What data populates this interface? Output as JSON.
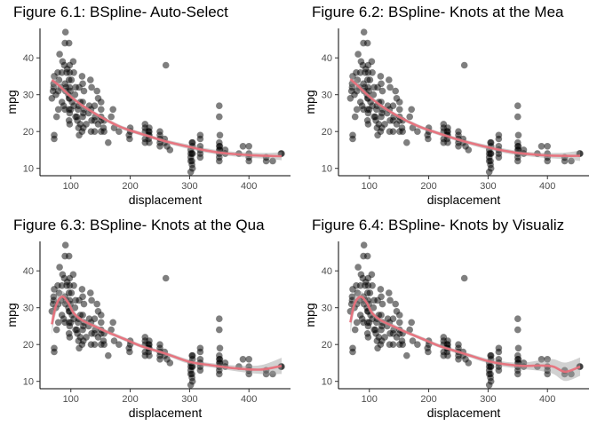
{
  "chart_data": [
    {
      "type": "scatter",
      "title": "Figure 6.1: BSpline- Auto-Select",
      "xlabel": "displacement",
      "ylabel": "mpg",
      "xlim": [
        48,
        470
      ],
      "ylim": [
        8,
        48
      ],
      "xticks": [
        100,
        200,
        300,
        400
      ],
      "yticks": [
        10,
        20,
        30,
        40
      ],
      "grid": false,
      "fit": {
        "x": [
          68,
          80,
          100,
          120,
          150,
          180,
          200,
          230,
          260,
          300,
          330,
          360,
          400,
          430,
          455
        ],
        "y": [
          34,
          32.5,
          29.5,
          27,
          24,
          21.5,
          20.3,
          18.8,
          17.3,
          15.8,
          14.8,
          14.1,
          13.6,
          13.4,
          13.3
        ],
        "band": [
          1.6,
          1.1,
          0.6,
          0.5,
          0.5,
          0.5,
          0.5,
          0.5,
          0.5,
          0.6,
          0.6,
          0.6,
          0.7,
          0.8,
          1.1
        ]
      }
    },
    {
      "type": "scatter",
      "title": "Figure 6.2: BSpline- Knots at the Mea",
      "xlabel": "displacement",
      "ylabel": "mpg",
      "xlim": [
        48,
        470
      ],
      "ylim": [
        8,
        48
      ],
      "xticks": [
        100,
        200,
        300,
        400
      ],
      "yticks": [
        10,
        20,
        30,
        40
      ],
      "grid": false,
      "fit": {
        "x": [
          68,
          80,
          100,
          120,
          150,
          180,
          200,
          230,
          260,
          300,
          330,
          360,
          400,
          430,
          455
        ],
        "y": [
          34.2,
          32.5,
          29.5,
          27,
          24,
          21.6,
          20.4,
          18.8,
          17.3,
          15.7,
          14.7,
          14,
          13.5,
          13.4,
          13.4
        ],
        "band": [
          1.8,
          1.2,
          0.6,
          0.5,
          0.5,
          0.5,
          0.5,
          0.5,
          0.5,
          0.6,
          0.6,
          0.6,
          0.7,
          0.9,
          1.4
        ]
      }
    },
    {
      "type": "scatter",
      "title": "Figure 6.3: BSpline- Knots at the Qua",
      "xlabel": "displacement",
      "ylabel": "mpg",
      "xlim": [
        48,
        470
      ],
      "ylim": [
        8,
        48
      ],
      "xticks": [
        100,
        200,
        300,
        400
      ],
      "yticks": [
        10,
        20,
        30,
        40
      ],
      "grid": false,
      "fit": {
        "x": [
          68,
          75,
          85,
          95,
          105,
          120,
          140,
          160,
          190,
          220,
          260,
          300,
          340,
          380,
          420,
          455
        ],
        "y": [
          25.5,
          30.5,
          33,
          31.5,
          28.5,
          26.5,
          25,
          23.5,
          21.5,
          19.5,
          17.5,
          15.3,
          14.3,
          13.5,
          13.2,
          14.2
        ],
        "band": [
          3.0,
          2.0,
          1.5,
          1.2,
          0.8,
          0.6,
          0.6,
          0.5,
          0.5,
          0.5,
          0.5,
          0.6,
          0.6,
          0.8,
          1.2,
          2.2
        ]
      }
    },
    {
      "type": "scatter",
      "title": "Figure 6.4: BSpline- Knots by Visualiz",
      "xlabel": "displacement",
      "ylabel": "mpg",
      "xlim": [
        48,
        470
      ],
      "ylim": [
        8,
        48
      ],
      "xticks": [
        100,
        200,
        300,
        400
      ],
      "yticks": [
        10,
        20,
        30,
        40
      ],
      "grid": false,
      "fit": {
        "x": [
          68,
          75,
          85,
          95,
          105,
          120,
          140,
          160,
          190,
          220,
          260,
          300,
          330,
          360,
          390,
          410,
          430,
          455
        ],
        "y": [
          26,
          31,
          33,
          31.5,
          28.5,
          26.5,
          25,
          23.5,
          21.5,
          19.5,
          17.5,
          15.5,
          14.6,
          14.2,
          14.3,
          14.0,
          12.6,
          14.0
        ],
        "band": [
          3.0,
          2.0,
          1.5,
          1.2,
          0.8,
          0.6,
          0.6,
          0.5,
          0.5,
          0.5,
          0.5,
          0.6,
          0.7,
          0.9,
          1.5,
          2.0,
          2.5,
          2.5
        ]
      }
    }
  ],
  "scatter_points": [
    [
      68,
      29
    ],
    [
      70,
      31
    ],
    [
      71,
      32
    ],
    [
      71,
      33
    ],
    [
      72,
      35
    ],
    [
      72,
      19
    ],
    [
      72,
      18
    ],
    [
      75,
      30
    ],
    [
      76,
      24
    ],
    [
      78,
      36
    ],
    [
      79,
      26
    ],
    [
      79,
      31
    ],
    [
      80,
      34
    ],
    [
      81,
      41
    ],
    [
      83,
      32
    ],
    [
      85,
      36
    ],
    [
      85,
      28
    ],
    [
      86,
      39
    ],
    [
      88,
      27
    ],
    [
      89,
      38
    ],
    [
      90,
      33
    ],
    [
      90,
      44
    ],
    [
      90,
      26
    ],
    [
      91,
      31
    ],
    [
      91,
      47
    ],
    [
      92,
      32
    ],
    [
      93,
      36
    ],
    [
      94,
      37
    ],
    [
      96,
      30
    ],
    [
      97,
      26
    ],
    [
      97,
      29
    ],
    [
      97,
      34
    ],
    [
      97,
      44
    ],
    [
      97,
      23
    ],
    [
      98,
      36
    ],
    [
      98,
      32
    ],
    [
      98,
      29
    ],
    [
      98,
      22
    ],
    [
      98,
      38
    ],
    [
      98,
      25
    ],
    [
      99,
      31
    ],
    [
      100,
      26
    ],
    [
      101,
      34
    ],
    [
      102,
      28
    ],
    [
      104,
      39
    ],
    [
      105,
      27
    ],
    [
      105,
      36
    ],
    [
      107,
      30
    ],
    [
      108,
      24
    ],
    [
      108,
      32
    ],
    [
      110,
      24
    ],
    [
      111,
      23
    ],
    [
      112,
      26
    ],
    [
      113,
      21
    ],
    [
      113,
      27
    ],
    [
      114,
      32
    ],
    [
      114,
      19
    ],
    [
      116,
      22
    ],
    [
      116,
      28
    ],
    [
      119,
      20
    ],
    [
      119,
      35
    ],
    [
      120,
      33
    ],
    [
      120,
      28
    ],
    [
      120,
      24
    ],
    [
      121,
      25
    ],
    [
      121,
      21
    ],
    [
      122,
      26
    ],
    [
      122,
      31
    ],
    [
      126,
      22
    ],
    [
      130,
      25
    ],
    [
      131,
      27
    ],
    [
      133,
      34
    ],
    [
      134,
      20
    ],
    [
      134,
      26
    ],
    [
      135,
      23
    ],
    [
      135,
      32
    ],
    [
      140,
      27
    ],
    [
      140,
      23
    ],
    [
      140,
      20
    ],
    [
      141,
      24
    ],
    [
      144,
      31
    ],
    [
      146,
      29
    ],
    [
      146,
      22
    ],
    [
      151,
      26
    ],
    [
      151,
      24
    ],
    [
      151,
      23
    ],
    [
      151,
      28
    ],
    [
      151,
      20
    ],
    [
      155,
      21
    ],
    [
      156,
      20
    ],
    [
      156,
      23
    ],
    [
      163,
      17
    ],
    [
      168,
      24
    ],
    [
      171,
      26
    ],
    [
      173,
      21
    ],
    [
      181,
      20
    ],
    [
      198,
      19
    ],
    [
      199,
      18
    ],
    [
      200,
      20
    ],
    [
      200,
      21
    ],
    [
      225,
      21
    ],
    [
      225,
      18
    ],
    [
      225,
      20
    ],
    [
      225,
      22
    ],
    [
      225,
      17
    ],
    [
      231,
      19
    ],
    [
      231,
      20
    ],
    [
      231,
      18
    ],
    [
      232,
      20
    ],
    [
      232,
      21
    ],
    [
      232,
      17
    ],
    [
      232,
      19
    ],
    [
      250,
      18
    ],
    [
      250,
      17
    ],
    [
      250,
      16
    ],
    [
      250,
      19
    ],
    [
      250,
      20
    ],
    [
      258,
      18
    ],
    [
      258,
      17
    ],
    [
      260,
      38
    ],
    [
      262,
      16
    ],
    [
      267,
      15
    ],
    [
      302,
      13
    ],
    [
      302,
      14
    ],
    [
      302,
      9
    ],
    [
      302,
      12
    ],
    [
      302,
      15
    ],
    [
      304,
      11
    ],
    [
      304,
      12
    ],
    [
      304,
      14
    ],
    [
      304,
      17
    ],
    [
      305,
      14
    ],
    [
      305,
      10
    ],
    [
      305,
      16
    ],
    [
      305,
      17
    ],
    [
      318,
      13
    ],
    [
      318,
      18
    ],
    [
      318,
      19
    ],
    [
      318,
      14
    ],
    [
      318,
      15
    ],
    [
      318,
      16
    ],
    [
      350,
      14
    ],
    [
      350,
      15
    ],
    [
      350,
      16
    ],
    [
      350,
      27
    ],
    [
      350,
      24
    ],
    [
      350,
      12
    ],
    [
      350,
      17
    ],
    [
      350,
      13
    ],
    [
      351,
      15
    ],
    [
      351,
      19
    ],
    [
      351,
      16
    ],
    [
      360,
      15
    ],
    [
      360,
      14
    ],
    [
      383,
      14
    ],
    [
      390,
      16
    ],
    [
      400,
      14
    ],
    [
      400,
      12
    ],
    [
      400,
      16
    ],
    [
      400,
      13
    ],
    [
      429,
      12
    ],
    [
      429,
      13
    ],
    [
      440,
      12
    ],
    [
      454,
      14
    ],
    [
      455,
      14
    ]
  ]
}
